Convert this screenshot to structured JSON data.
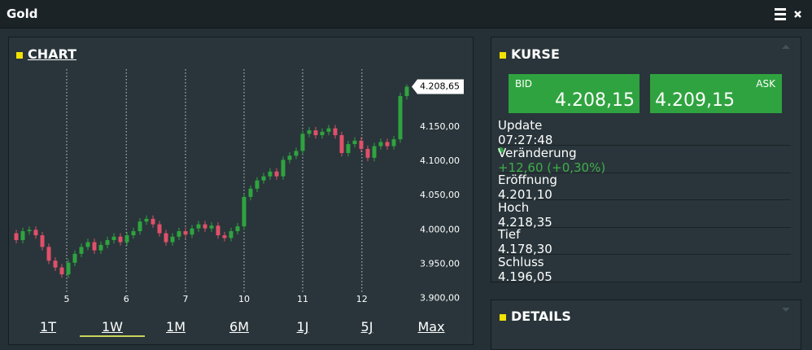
{
  "header": {
    "title": "Gold"
  },
  "chart_panel": {
    "title": "CHART",
    "tabs": [
      "1T",
      "1W",
      "1M",
      "6M",
      "1J",
      "5J",
      "Max"
    ],
    "active_tab": 1
  },
  "chart_data": {
    "type": "candlestick",
    "up_color": "#2fa33f",
    "down_color": "#e0506a",
    "open": [
      3995,
      3985,
      3998,
      4000,
      3992,
      3975,
      3955,
      3945,
      3935,
      3952,
      3965,
      3975,
      3982,
      3970,
      3978,
      3985,
      3990,
      3982,
      3992,
      3998,
      4012,
      4016,
      4008,
      3995,
      3982,
      3990,
      3998,
      3993,
      4002,
      4008,
      4002,
      4006,
      3992,
      3988,
      3998,
      4005,
      4048,
      4060,
      4072,
      4078,
      4085,
      4078,
      4102,
      4108,
      4115,
      4140,
      4145,
      4138,
      4143,
      4148,
      4138,
      4112,
      4125,
      4130,
      4118,
      4105,
      4122,
      4128,
      4122,
      4132,
      4195
    ],
    "high": [
      4000,
      4003,
      4005,
      4005,
      3997,
      3980,
      3960,
      3950,
      3957,
      3970,
      3980,
      3987,
      3987,
      3983,
      3990,
      3995,
      3995,
      3997,
      4003,
      4017,
      4021,
      4021,
      4013,
      4000,
      3995,
      4003,
      4003,
      4007,
      4013,
      4013,
      4011,
      4011,
      3997,
      4003,
      4010,
      4053,
      4065,
      4077,
      4083,
      4090,
      4090,
      4107,
      4113,
      4120,
      4145,
      4150,
      4150,
      4148,
      4153,
      4153,
      4143,
      4130,
      4135,
      4135,
      4123,
      4127,
      4133,
      4133,
      4137,
      4200,
      4212
    ],
    "low": [
      3980,
      3980,
      3993,
      3987,
      3970,
      3950,
      3940,
      3930,
      3930,
      3947,
      3960,
      3970,
      3965,
      3965,
      3973,
      3980,
      3977,
      3977,
      3987,
      3993,
      4007,
      4003,
      3990,
      3977,
      3977,
      3985,
      3988,
      3988,
      3997,
      3997,
      3997,
      3987,
      3983,
      3983,
      3993,
      4000,
      4043,
      4055,
      4067,
      4073,
      4073,
      4073,
      4097,
      4103,
      4110,
      4135,
      4133,
      4133,
      4138,
      4133,
      4107,
      4107,
      4120,
      4113,
      4100,
      4100,
      4117,
      4117,
      4117,
      4127,
      4190
    ],
    "close": [
      3985,
      3998,
      4000,
      3992,
      3975,
      3955,
      3945,
      3935,
      3952,
      3965,
      3975,
      3982,
      3970,
      3978,
      3985,
      3990,
      3982,
      3992,
      3998,
      4012,
      4016,
      4008,
      3995,
      3982,
      3990,
      3998,
      3993,
      4002,
      4008,
      4002,
      4006,
      3992,
      3988,
      3998,
      4005,
      4048,
      4060,
      4072,
      4078,
      4085,
      4078,
      4102,
      4108,
      4115,
      4140,
      4145,
      4138,
      4143,
      4148,
      4138,
      4112,
      4125,
      4130,
      4118,
      4105,
      4122,
      4128,
      4122,
      4132,
      4195,
      4208.65
    ],
    "ylim": [
      3890,
      4220
    ],
    "yticks": [
      {
        "value": 3900,
        "label": "3.900,00"
      },
      {
        "value": 3950,
        "label": "3.950,00"
      },
      {
        "value": 4000,
        "label": "4.000,00"
      },
      {
        "value": 4050,
        "label": "4.050,00"
      },
      {
        "value": 4100,
        "label": "4.100,00"
      },
      {
        "value": 4150,
        "label": "4.150,00"
      }
    ],
    "xticks": [
      {
        "value": 7.75,
        "label": "5"
      },
      {
        "value": 16.9,
        "label": "6"
      },
      {
        "value": 26,
        "label": "7"
      },
      {
        "value": 35,
        "label": "10"
      },
      {
        "value": 44,
        "label": "11"
      },
      {
        "value": 53.1,
        "label": "12"
      }
    ],
    "last_price": {
      "value": 4208.65,
      "label": "4.208,65"
    }
  },
  "quotes": {
    "title": "KURSE",
    "bid": {
      "label": "BID",
      "value": "4.208,15"
    },
    "ask": {
      "label": "ASK",
      "value": "4.209,15"
    },
    "rows": [
      [
        "Update",
        "07:27:48"
      ],
      [
        "Veränderung",
        "+12,60 (+0,30%)"
      ],
      [
        "Eröffnung",
        "4.201,10"
      ],
      [
        "Hoch",
        "4.218,35"
      ],
      [
        "Tief",
        "4.178,30"
      ],
      [
        "Schluss",
        "4.196,05"
      ]
    ]
  },
  "details": {
    "title": "DETAILS"
  }
}
